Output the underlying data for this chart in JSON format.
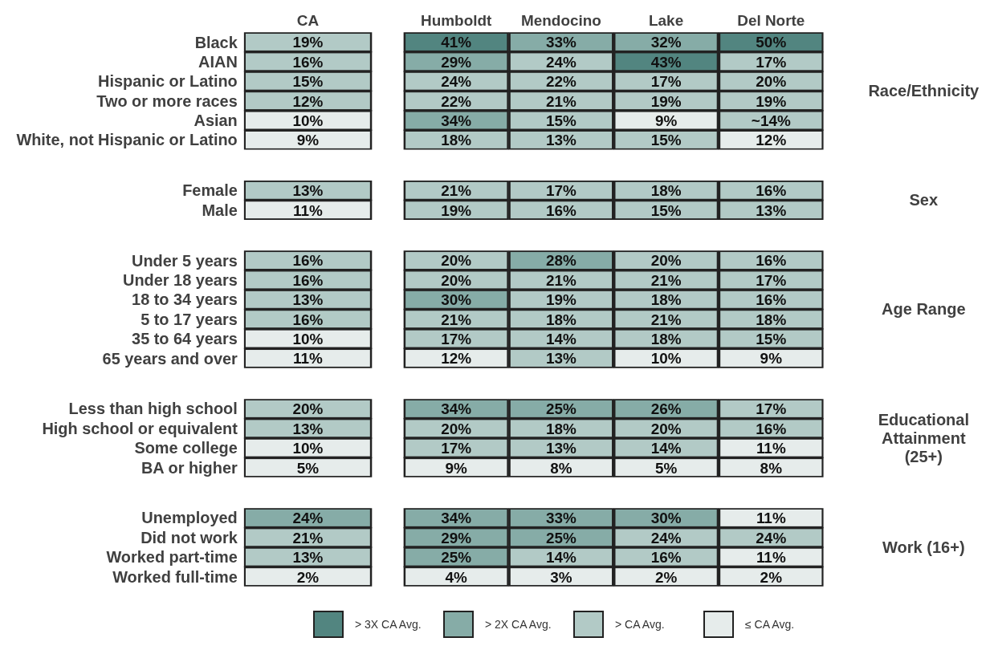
{
  "chart_data": [
    {
      "type": "heatmap",
      "categories": [
        "CA",
        "Humboldt",
        "Mendocino",
        "Lake",
        "Del Norte"
      ],
      "y_categories": [
        "Black",
        "AIAN",
        "Hispanic or Latino",
        "Two or more races",
        "Asian",
        "White, not Hispanic or Latino"
      ],
      "y2label": "Race/Ethnicity",
      "cells": [
        [
          19,
          41,
          33,
          32,
          50
        ],
        [
          16,
          29,
          24,
          43,
          17
        ],
        [
          15,
          24,
          22,
          17,
          20
        ],
        [
          12,
          22,
          21,
          19,
          19
        ],
        [
          10,
          34,
          15,
          9,
          14
        ],
        [
          9,
          18,
          13,
          15,
          12
        ]
      ],
      "cell_labels": [
        [
          "19%",
          "41%",
          "33%",
          "32%",
          "50%"
        ],
        [
          "16%",
          "29%",
          "24%",
          "43%",
          "17%"
        ],
        [
          "15%",
          "24%",
          "22%",
          "17%",
          "20%"
        ],
        [
          "12%",
          "22%",
          "21%",
          "19%",
          "19%"
        ],
        [
          "10%",
          "34%",
          "15%",
          "9%",
          "~14%"
        ],
        [
          "9%",
          "18%",
          "13%",
          "15%",
          "12%"
        ]
      ],
      "colors": [
        [
          "#b2cac6",
          "#528580",
          "#86aca7",
          "#86aca7",
          "#528580"
        ],
        [
          "#b2cac6",
          "#86aca7",
          "#b2cac6",
          "#528580",
          "#b2cac6"
        ],
        [
          "#b2cac6",
          "#b2cac6",
          "#b2cac6",
          "#b2cac6",
          "#b2cac6"
        ],
        [
          "#b2cac6",
          "#b2cac6",
          "#b2cac6",
          "#b2cac6",
          "#b2cac6"
        ],
        [
          "#e6eceb",
          "#86aca7",
          "#b2cac6",
          "#e6eceb",
          "#b2cac6"
        ],
        [
          "#e6eceb",
          "#b2cac6",
          "#b2cac6",
          "#b2cac6",
          "#e6eceb"
        ]
      ]
    },
    {
      "type": "heatmap",
      "categories": [
        null,
        null,
        null,
        null,
        null
      ],
      "y_categories": [
        "Female",
        "Male"
      ],
      "y2label": "Sex",
      "tick_labels": "y",
      "cells": [
        [
          13,
          21,
          17,
          18,
          16
        ],
        [
          11,
          19,
          16,
          15,
          13
        ]
      ],
      "cell_labels": [
        [
          "13%",
          "21%",
          "17%",
          "18%",
          "16%"
        ],
        [
          "11%",
          "19%",
          "16%",
          "15%",
          "13%"
        ]
      ],
      "colors": [
        [
          "#b2cac6",
          "#b2cac6",
          "#b2cac6",
          "#b2cac6",
          "#b2cac6"
        ],
        [
          "#e6eceb",
          "#b2cac6",
          "#b2cac6",
          "#b2cac6",
          "#b2cac6"
        ]
      ]
    },
    {
      "type": "heatmap",
      "categories": [
        null,
        null,
        null,
        null,
        null
      ],
      "y_categories": [
        "Under 5 years",
        "Under 18 years",
        "18 to 34 years",
        "5 to 17 years",
        "35 to 64 years",
        "65 years and over"
      ],
      "y2label": "Age Range",
      "tick_labels": "y",
      "cells": [
        [
          16,
          20,
          28,
          20,
          16
        ],
        [
          16,
          20,
          21,
          21,
          17
        ],
        [
          13,
          30,
          19,
          18,
          16
        ],
        [
          16,
          21,
          18,
          21,
          18
        ],
        [
          10,
          17,
          14,
          18,
          15
        ],
        [
          11,
          12,
          13,
          10,
          9
        ]
      ],
      "cell_labels": [
        [
          "16%",
          "20%",
          "28%",
          "20%",
          "16%"
        ],
        [
          "16%",
          "20%",
          "21%",
          "21%",
          "17%"
        ],
        [
          "13%",
          "30%",
          "19%",
          "18%",
          "16%"
        ],
        [
          "16%",
          "21%",
          "18%",
          "21%",
          "18%"
        ],
        [
          "10%",
          "17%",
          "14%",
          "18%",
          "15%"
        ],
        [
          "11%",
          "12%",
          "13%",
          "10%",
          "9%"
        ]
      ],
      "colors": [
        [
          "#b2cac6",
          "#b2cac6",
          "#86aca7",
          "#b2cac6",
          "#b2cac6"
        ],
        [
          "#b2cac6",
          "#b2cac6",
          "#b2cac6",
          "#b2cac6",
          "#b2cac6"
        ],
        [
          "#b2cac6",
          "#86aca7",
          "#b2cac6",
          "#b2cac6",
          "#b2cac6"
        ],
        [
          "#b2cac6",
          "#b2cac6",
          "#b2cac6",
          "#b2cac6",
          "#b2cac6"
        ],
        [
          "#e6eceb",
          "#b2cac6",
          "#b2cac6",
          "#b2cac6",
          "#b2cac6"
        ],
        [
          "#e6eceb",
          "#e6eceb",
          "#b2cac6",
          "#e6eceb",
          "#e6eceb"
        ]
      ]
    },
    {
      "type": "heatmap",
      "categories": [
        null,
        null,
        null,
        null,
        null
      ],
      "y_categories": [
        "Less than high school",
        "High school or equivalent",
        "Some college",
        "BA or higher"
      ],
      "y2label": "Educational Attainment (25+)",
      "tick_labels": "y",
      "cells": [
        [
          20,
          34,
          25,
          26,
          17
        ],
        [
          13,
          20,
          18,
          20,
          16
        ],
        [
          10,
          17,
          13,
          14,
          11
        ],
        [
          5,
          9,
          8,
          5,
          8
        ]
      ],
      "cell_labels": [
        [
          "20%",
          "34%",
          "25%",
          "26%",
          "17%"
        ],
        [
          "13%",
          "20%",
          "18%",
          "20%",
          "16%"
        ],
        [
          "10%",
          "17%",
          "13%",
          "14%",
          "11%"
        ],
        [
          "5%",
          "9%",
          "8%",
          "5%",
          "8%"
        ]
      ],
      "colors": [
        [
          "#b2cac6",
          "#86aca7",
          "#86aca7",
          "#86aca7",
          "#b2cac6"
        ],
        [
          "#b2cac6",
          "#b2cac6",
          "#b2cac6",
          "#b2cac6",
          "#b2cac6"
        ],
        [
          "#e6eceb",
          "#b2cac6",
          "#b2cac6",
          "#b2cac6",
          "#e6eceb"
        ],
        [
          "#e6eceb",
          "#e6eceb",
          "#e6eceb",
          "#e6eceb",
          "#e6eceb"
        ]
      ]
    },
    {
      "type": "heatmap",
      "categories": [
        null,
        null,
        null,
        null,
        null
      ],
      "y_categories": [
        "Unemployed",
        "Did not work",
        "Worked part-time",
        "Worked full-time"
      ],
      "y2label": "Work (16+)",
      "tick_labels": "y",
      "cells": [
        [
          24,
          34,
          33,
          30,
          11
        ],
        [
          21,
          29,
          25,
          24,
          24
        ],
        [
          13,
          25,
          14,
          16,
          11
        ],
        [
          2,
          4,
          3,
          2,
          2
        ]
      ],
      "cell_labels": [
        [
          "24%",
          "34%",
          "33%",
          "30%",
          "11%"
        ],
        [
          "21%",
          "29%",
          "25%",
          "24%",
          "24%"
        ],
        [
          "13%",
          "25%",
          "14%",
          "16%",
          "11%"
        ],
        [
          "2%",
          "4%",
          "3%",
          "2%",
          "2%"
        ]
      ],
      "colors": [
        [
          "#86aca7",
          "#86aca7",
          "#86aca7",
          "#86aca7",
          "#e6eceb"
        ],
        [
          "#b2cac6",
          "#86aca7",
          "#86aca7",
          "#b2cac6",
          "#b2cac6"
        ],
        [
          "#b2cac6",
          "#86aca7",
          "#b2cac6",
          "#b2cac6",
          "#e6eceb"
        ],
        [
          "#e6eceb",
          "#e6eceb",
          "#e6eceb",
          "#e6eceb",
          "#e6eceb"
        ]
      ]
    },
    {
      "type": "other",
      "categories": [
        "> 3X CA Avg.",
        "> 2X CA Avg.",
        "> CA Avg.",
        "≤ CA Avg."
      ],
      "colors": [
        "#528580",
        "#86aca7",
        "#b2cac6",
        "#e6eceb"
      ]
    }
  ]
}
